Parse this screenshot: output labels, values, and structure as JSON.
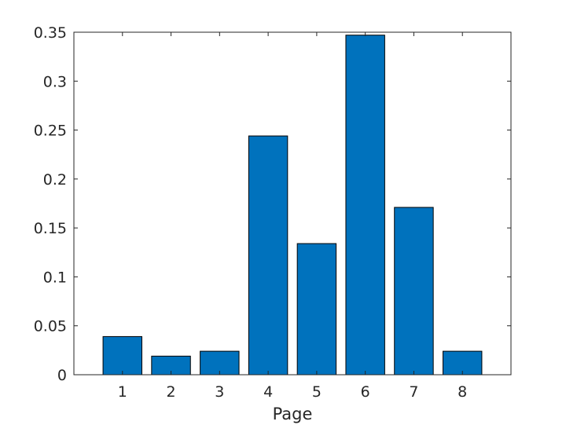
{
  "chart_data": {
    "type": "bar",
    "categories": [
      "1",
      "2",
      "3",
      "4",
      "5",
      "6",
      "7",
      "8"
    ],
    "values": [
      0.039,
      0.019,
      0.024,
      0.244,
      0.134,
      0.347,
      0.171,
      0.024
    ],
    "title": "",
    "xlabel": "Page",
    "ylabel": "",
    "ylim": [
      0,
      0.35
    ],
    "xlim": [
      0,
      9
    ],
    "yticks": [
      "0",
      "0.05",
      "0.1",
      "0.15",
      "0.2",
      "0.25",
      "0.3",
      "0.35"
    ],
    "ytick_values": [
      0,
      0.05,
      0.1,
      0.15,
      0.2,
      0.25,
      0.3,
      0.35
    ],
    "grid": false,
    "box": true,
    "bar_color": "#0072BD",
    "edge_color": "#000000"
  }
}
